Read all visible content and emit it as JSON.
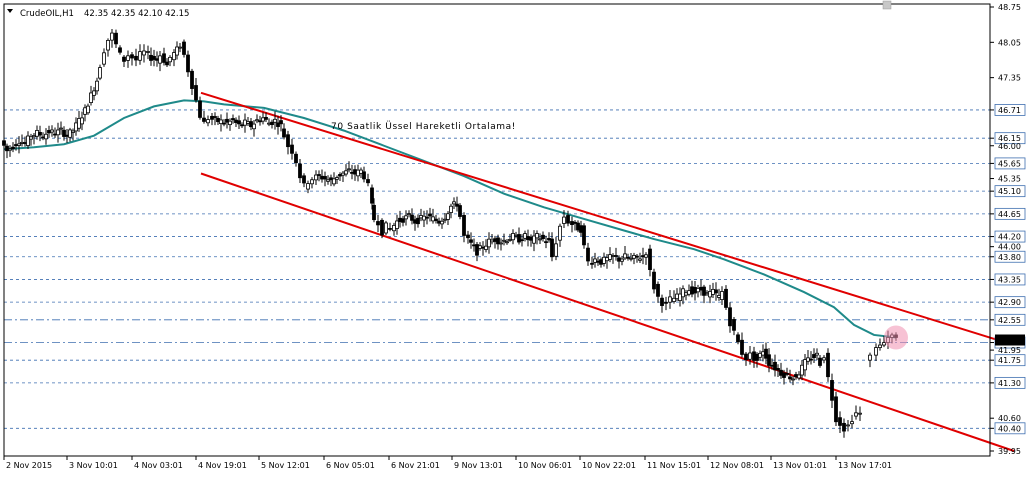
{
  "chart_data": {
    "type": "candlestick",
    "symbol": "CrudeOIL,H1",
    "ohlc_header": "42.35 42.35 42.10 42.15",
    "annotation": "70 Saatlik Üssel Hareketli Ortalama!",
    "y_range": [
      39.9,
      48.8
    ],
    "y_ticks": [
      "48.75",
      "48.05",
      "47.35",
      "46.71",
      "46.15",
      "46.00",
      "45.65",
      "45.35",
      "45.10",
      "44.65",
      "44.20",
      "44.00",
      "43.80",
      "43.35",
      "42.90",
      "42.55",
      "42.10",
      "41.95",
      "41.75",
      "41.30",
      "40.60",
      "40.40",
      "39.95"
    ],
    "x_ticks": [
      "2 Nov 2015",
      "3 Nov 10:01",
      "4 Nov 03:01",
      "4 Nov 19:01",
      "5 Nov 12:01",
      "6 Nov 05:01",
      "6 Nov 21:01",
      "9 Nov 13:01",
      "10 Nov 06:01",
      "10 Nov 22:01",
      "11 Nov 15:01",
      "12 Nov 08:01",
      "13 Nov 01:01",
      "13 Nov 17:01"
    ],
    "horizontal_levels": [
      46.71,
      46.15,
      45.65,
      45.1,
      44.65,
      44.2,
      43.8,
      43.35,
      42.9,
      41.75,
      41.3,
      40.4
    ],
    "dash_dot_levels": [
      42.55,
      42.1
    ],
    "current_price": 42.15,
    "grid": false,
    "close_path": [
      [
        0,
        46.1
      ],
      [
        6,
        45.9
      ],
      [
        12,
        46.0
      ],
      [
        18,
        46.1
      ],
      [
        24,
        46.05
      ],
      [
        30,
        46.2
      ],
      [
        36,
        46.25
      ],
      [
        42,
        46.2
      ],
      [
        48,
        46.28
      ],
      [
        54,
        46.25
      ],
      [
        60,
        46.3
      ],
      [
        66,
        46.2
      ],
      [
        72,
        46.3
      ],
      [
        78,
        46.5
      ],
      [
        84,
        46.7
      ],
      [
        90,
        47.0
      ],
      [
        96,
        47.3
      ],
      [
        100,
        47.6
      ],
      [
        104,
        47.9
      ],
      [
        108,
        48.1
      ],
      [
        112,
        48.2
      ],
      [
        116,
        48.0
      ],
      [
        120,
        47.8
      ],
      [
        124,
        47.7
      ],
      [
        128,
        47.8
      ],
      [
        132,
        47.75
      ],
      [
        136,
        47.7
      ],
      [
        140,
        47.8
      ],
      [
        144,
        47.85
      ],
      [
        150,
        47.75
      ],
      [
        156,
        47.7
      ],
      [
        160,
        47.8
      ],
      [
        166,
        47.6
      ],
      [
        170,
        47.75
      ],
      [
        176,
        47.9
      ],
      [
        180,
        48.0
      ],
      [
        184,
        47.8
      ],
      [
        188,
        47.5
      ],
      [
        192,
        47.2
      ],
      [
        196,
        46.9
      ],
      [
        200,
        46.6
      ],
      [
        204,
        46.45
      ],
      [
        208,
        46.55
      ],
      [
        214,
        46.5
      ],
      [
        220,
        46.48
      ],
      [
        226,
        46.45
      ],
      [
        232,
        46.5
      ],
      [
        238,
        46.4
      ],
      [
        244,
        46.45
      ],
      [
        250,
        46.4
      ],
      [
        256,
        46.5
      ],
      [
        262,
        46.55
      ],
      [
        268,
        46.45
      ],
      [
        274,
        46.5
      ],
      [
        280,
        46.4
      ],
      [
        284,
        46.2
      ],
      [
        288,
        46.0
      ],
      [
        292,
        45.9
      ],
      [
        296,
        45.7
      ],
      [
        300,
        45.4
      ],
      [
        304,
        45.2
      ],
      [
        308,
        45.3
      ],
      [
        312,
        45.35
      ],
      [
        318,
        45.4
      ],
      [
        324,
        45.35
      ],
      [
        330,
        45.3
      ],
      [
        336,
        45.4
      ],
      [
        342,
        45.45
      ],
      [
        348,
        45.5
      ],
      [
        354,
        45.45
      ],
      [
        360,
        45.5
      ],
      [
        364,
        45.4
      ],
      [
        368,
        45.2
      ],
      [
        370,
        44.8
      ],
      [
        374,
        44.55
      ],
      [
        378,
        44.5
      ],
      [
        382,
        44.3
      ],
      [
        386,
        44.4
      ],
      [
        390,
        44.35
      ],
      [
        396,
        44.5
      ],
      [
        402,
        44.55
      ],
      [
        408,
        44.6
      ],
      [
        414,
        44.5
      ],
      [
        420,
        44.55
      ],
      [
        426,
        44.6
      ],
      [
        432,
        44.55
      ],
      [
        438,
        44.5
      ],
      [
        444,
        44.6
      ],
      [
        450,
        44.8
      ],
      [
        456,
        44.85
      ],
      [
        460,
        44.6
      ],
      [
        464,
        44.2
      ],
      [
        470,
        44.05
      ],
      [
        476,
        43.9
      ],
      [
        482,
        44.0
      ],
      [
        488,
        44.1
      ],
      [
        494,
        44.15
      ],
      [
        500,
        44.1
      ],
      [
        506,
        44.15
      ],
      [
        512,
        44.2
      ],
      [
        518,
        44.15
      ],
      [
        524,
        44.2
      ],
      [
        530,
        44.1
      ],
      [
        536,
        44.2
      ],
      [
        542,
        44.15
      ],
      [
        548,
        44.1
      ],
      [
        552,
        43.8
      ],
      [
        556,
        44.1
      ],
      [
        560,
        44.4
      ],
      [
        564,
        44.6
      ],
      [
        568,
        44.5
      ],
      [
        574,
        44.4
      ],
      [
        580,
        44.35
      ],
      [
        584,
        44.0
      ],
      [
        588,
        43.7
      ],
      [
        594,
        43.75
      ],
      [
        600,
        43.7
      ],
      [
        606,
        43.75
      ],
      [
        612,
        43.8
      ],
      [
        618,
        43.75
      ],
      [
        624,
        43.8
      ],
      [
        630,
        43.75
      ],
      [
        636,
        43.78
      ],
      [
        642,
        43.8
      ],
      [
        646,
        43.9
      ],
      [
        650,
        43.5
      ],
      [
        654,
        43.2
      ],
      [
        658,
        43.0
      ],
      [
        662,
        42.9
      ],
      [
        666,
        42.85
      ],
      [
        670,
        42.95
      ],
      [
        676,
        43.0
      ],
      [
        682,
        43.1
      ],
      [
        688,
        43.15
      ],
      [
        694,
        43.1
      ],
      [
        700,
        43.15
      ],
      [
        706,
        43.05
      ],
      [
        712,
        43.1
      ],
      [
        718,
        43.0
      ],
      [
        722,
        43.1
      ],
      [
        726,
        42.8
      ],
      [
        730,
        42.5
      ],
      [
        734,
        42.3
      ],
      [
        738,
        42.1
      ],
      [
        742,
        41.9
      ],
      [
        746,
        41.8
      ],
      [
        750,
        41.85
      ],
      [
        756,
        41.75
      ],
      [
        762,
        41.95
      ],
      [
        768,
        41.7
      ],
      [
        774,
        41.6
      ],
      [
        780,
        41.5
      ],
      [
        786,
        41.45
      ],
      [
        792,
        41.4
      ],
      [
        798,
        41.5
      ],
      [
        804,
        41.7
      ],
      [
        810,
        41.8
      ],
      [
        816,
        41.85
      ],
      [
        820,
        41.7
      ],
      [
        824,
        41.85
      ],
      [
        828,
        41.4
      ],
      [
        832,
        41.0
      ],
      [
        836,
        40.6
      ],
      [
        840,
        40.5
      ],
      [
        844,
        40.4
      ],
      [
        848,
        40.45
      ],
      [
        852,
        40.6
      ],
      [
        856,
        40.7
      ],
      [
        860,
        40.68
      ]
    ],
    "last_bars": [
      [
        866,
        41.85
      ],
      [
        872,
        42.0
      ],
      [
        876,
        42.05
      ],
      [
        880,
        42.1
      ],
      [
        884,
        42.2
      ],
      [
        888,
        42.25
      ],
      [
        892,
        42.2
      ]
    ],
    "ema_path": [
      [
        0,
        45.93
      ],
      [
        30,
        45.97
      ],
      [
        60,
        46.03
      ],
      [
        90,
        46.2
      ],
      [
        120,
        46.55
      ],
      [
        150,
        46.78
      ],
      [
        180,
        46.9
      ],
      [
        200,
        46.88
      ],
      [
        220,
        46.82
      ],
      [
        260,
        46.75
      ],
      [
        300,
        46.55
      ],
      [
        340,
        46.3
      ],
      [
        380,
        46.0
      ],
      [
        420,
        45.7
      ],
      [
        460,
        45.4
      ],
      [
        500,
        45.05
      ],
      [
        540,
        44.78
      ],
      [
        580,
        44.55
      ],
      [
        620,
        44.32
      ],
      [
        650,
        44.15
      ],
      [
        690,
        43.95
      ],
      [
        720,
        43.75
      ],
      [
        760,
        43.45
      ],
      [
        800,
        43.1
      ],
      [
        830,
        42.8
      ],
      [
        850,
        42.45
      ],
      [
        870,
        42.25
      ],
      [
        892,
        42.2
      ]
    ],
    "channel_upper": [
      [
        197,
        47.05
      ],
      [
        1010,
        42.05
      ]
    ],
    "channel_lower": [
      [
        197,
        45.45
      ],
      [
        1010,
        39.95
      ]
    ]
  }
}
